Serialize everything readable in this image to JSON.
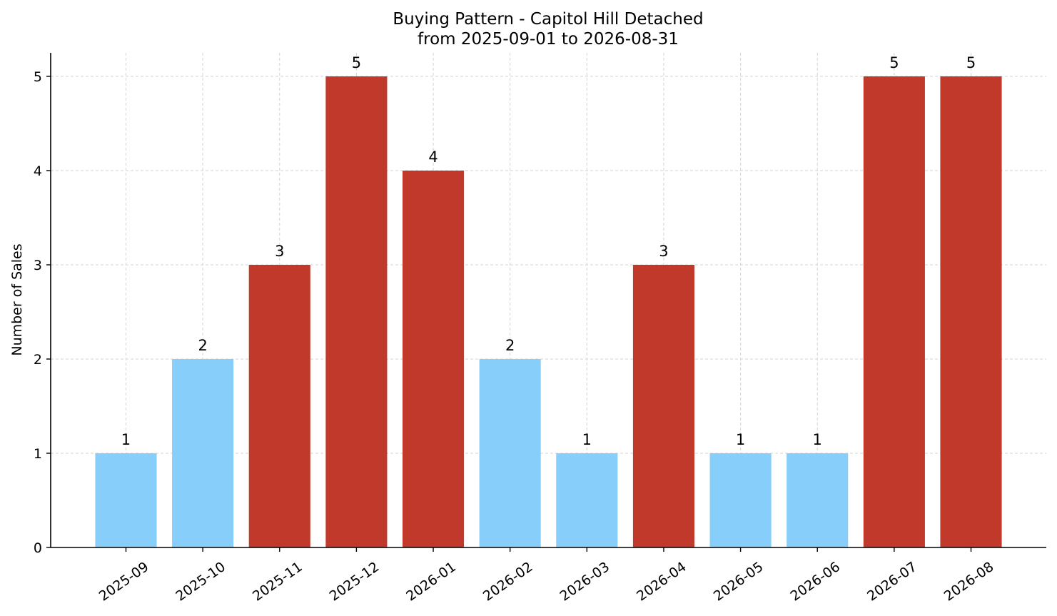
{
  "chart_data": {
    "type": "bar",
    "title": "Buying Pattern - Capitol Hill Detached",
    "subtitle": "from 2025-09-01 to 2026-08-31",
    "xlabel": "",
    "ylabel": "Number of Sales",
    "ylim": [
      0,
      5.25
    ],
    "yticks": [
      "0",
      "1",
      "2",
      "3",
      "4",
      "5"
    ],
    "grid": true,
    "categories": [
      "2025-09",
      "2025-10",
      "2025-11",
      "2025-12",
      "2026-01",
      "2026-02",
      "2026-03",
      "2026-04",
      "2026-05",
      "2026-06",
      "2026-07",
      "2026-08"
    ],
    "values": [
      1,
      2,
      3,
      5,
      4,
      2,
      1,
      3,
      1,
      1,
      5,
      5
    ],
    "data_labels": [
      "1",
      "2",
      "3",
      "5",
      "4",
      "2",
      "1",
      "3",
      "1",
      "1",
      "5",
      "5"
    ],
    "colors": {
      "high": "#c0392b",
      "low": "#87cefa"
    },
    "bar_color_keys": [
      "low",
      "low",
      "high",
      "high",
      "high",
      "low",
      "low",
      "high",
      "low",
      "low",
      "high",
      "high"
    ]
  }
}
